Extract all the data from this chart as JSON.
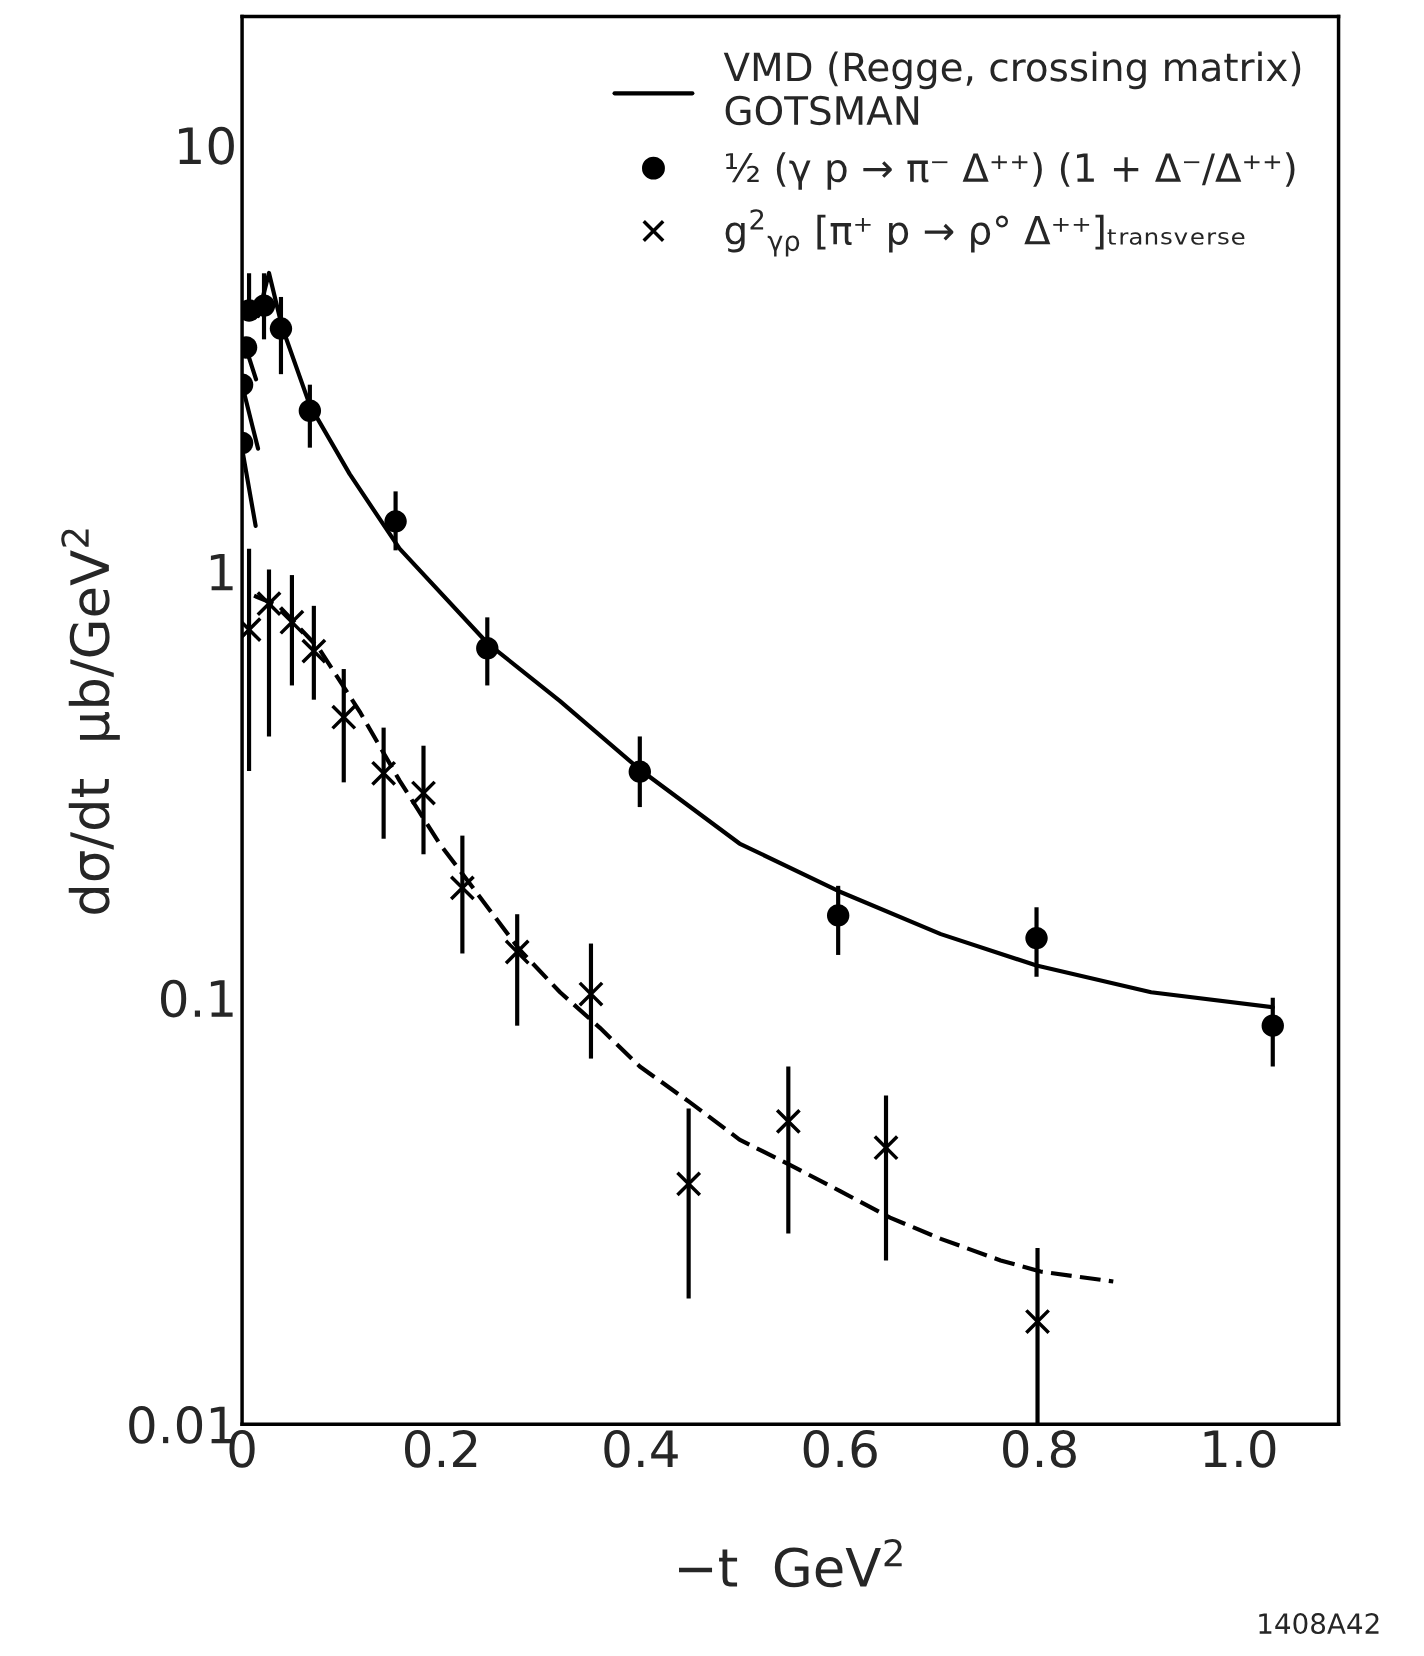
{
  "chart_data": {
    "type": "scatter",
    "xlabel": "−t  GeV$^{2}$",
    "ylabel": "dσ/dt  μb/GeV$^{2}$",
    "log": "y",
    "xlim": [
      0,
      1.1
    ],
    "ylim": [
      0.01,
      20
    ],
    "xticks": [
      0,
      0.2,
      0.4,
      0.6,
      0.8,
      {
        "value": 1,
        "label": "1.0"
      }
    ],
    "yticks": [
      0.01,
      0.1,
      1,
      10
    ],
    "grid": false,
    "legend": "top right",
    "annotations": [
      "1408A42"
    ],
    "series": [
      {
        "name": "VMD (Regge, crossing matrix)\nGOTSMAN",
        "type": "line",
        "line_style": "solid",
        "marker": "none",
        "color": "#000000",
        "x": [
          0.016,
          0.027,
          0.04,
          0.068,
          0.108,
          0.158,
          0.246,
          0.319,
          0.399,
          0.499,
          0.598,
          0.701,
          0.797,
          0.912,
          1.034
        ],
        "values": [
          3.97,
          5.01,
          3.75,
          2.45,
          1.69,
          1.13,
          0.679,
          0.496,
          0.343,
          0.23,
          0.178,
          0.141,
          0.119,
          0.103,
          0.095
        ]
      },
      {
        "type": "line",
        "line_style": "solid",
        "marker": "none",
        "color": "#000000",
        "x": [
          0,
          0.0136
        ],
        "values": [
          1.94,
          1.278
        ]
      },
      {
        "type": "line",
        "line_style": "solid",
        "marker": "none",
        "color": "#000000",
        "x": [
          0.001,
          0.016
        ],
        "values": [
          2.68,
          1.94
        ]
      },
      {
        "type": "line",
        "line_style": "solid",
        "marker": "none",
        "color": "#000000",
        "x": [
          0.003,
          0.014
        ],
        "values": [
          3.39,
          2.82
        ]
      },
      {
        "type": "line",
        "line_style": "dashed",
        "marker": "none",
        "color": "#000000",
        "x": [
          0.012,
          0.037,
          0.077,
          0.118,
          0.158,
          0.198,
          0.238,
          0.278,
          0.319,
          0.359,
          0.399,
          0.449,
          0.499,
          0.55,
          0.6,
          0.65,
          0.701,
          0.761,
          0.801,
          0.874
        ],
        "values": [
          0.877,
          0.829,
          0.66,
          0.469,
          0.323,
          0.23,
          0.173,
          0.13,
          0.103,
          0.085,
          0.069,
          0.0569,
          0.0465,
          0.0405,
          0.0352,
          0.0305,
          0.0272,
          0.0242,
          0.0228,
          0.0216
        ]
      },
      {
        "name": "½ (γ p → π⁻ Δ⁺⁺) (1 + Δ⁻/Δ⁺⁺)",
        "marker": "circle",
        "color": "#000000",
        "x": [
          0,
          0,
          0.004,
          0.007,
          0.022,
          0.039,
          0.068,
          0.154,
          0.246,
          0.399,
          0.598,
          0.797,
          1.034
        ],
        "values": [
          2.0,
          2.74,
          3.35,
          4.09,
          4.2,
          3.71,
          2.38,
          1.31,
          0.66,
          0.339,
          0.156,
          0.138,
          0.086
        ],
        "errors": [
          null,
          null,
          null,
          [
            4.09,
            5.0
          ],
          [
            3.5,
            5.0
          ],
          [
            2.9,
            4.4
          ],
          [
            1.95,
            2.74
          ],
          [
            1.12,
            1.54
          ],
          [
            0.54,
            0.78
          ],
          [
            0.28,
            0.41
          ],
          [
            0.126,
            0.183
          ],
          [
            0.112,
            0.163
          ],
          [
            0.069,
            0.1
          ]
        ]
      },
      {
        "name": "g$^{2}$$_{γρ}$ [π⁺ p → ρ° Δ⁺⁺]ₜᵣₐₙₛᵥₑᵣₛₑ",
        "marker": "cross",
        "color": "#000000",
        "x": [
          0.007,
          0.027,
          0.05,
          0.072,
          0.102,
          0.142,
          0.182,
          0.221,
          0.276,
          0.35,
          0.448,
          0.548,
          0.646,
          0.798
        ],
        "values": [
          0.73,
          0.84,
          0.76,
          0.65,
          0.455,
          0.336,
          0.302,
          0.181,
          0.128,
          0.102,
          0.0366,
          0.0513,
          0.0445,
          0.0174
        ],
        "errors": [
          [
            0.34,
            1.13
          ],
          [
            0.41,
            1.01
          ],
          [
            0.54,
            0.98
          ],
          [
            0.5,
            0.83
          ],
          [
            0.32,
            0.59
          ],
          [
            0.236,
            0.43
          ],
          [
            0.217,
            0.39
          ],
          [
            0.127,
            0.24
          ],
          [
            0.086,
            0.157
          ],
          [
            0.072,
            0.134
          ],
          [
            0.0197,
            0.055
          ],
          [
            0.028,
            0.069
          ],
          [
            0.0242,
            0.059
          ],
          [
            0.01,
            0.0259
          ]
        ]
      }
    ]
  }
}
